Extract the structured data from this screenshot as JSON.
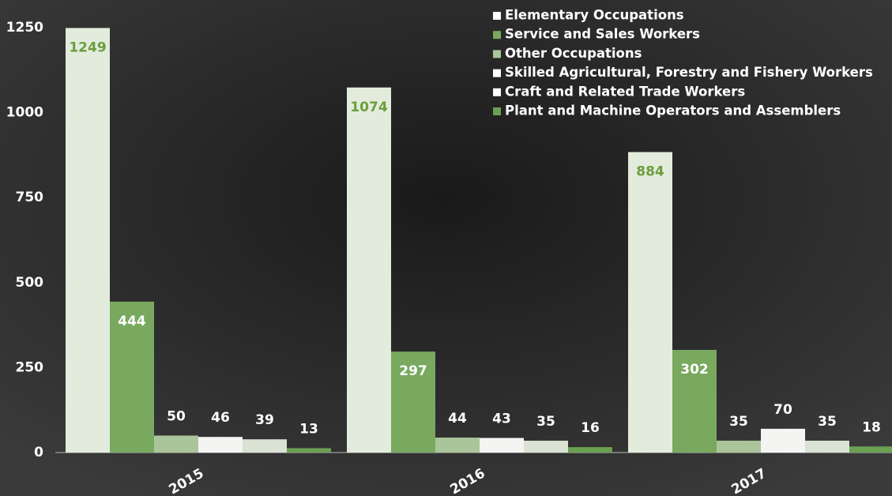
{
  "chart_data": {
    "type": "bar",
    "categories": [
      "2015",
      "2016",
      "2017"
    ],
    "series": [
      {
        "name": "Elementary Occupations",
        "color": "#e3ecdc",
        "values": [
          1249,
          1074,
          884
        ]
      },
      {
        "name": "Service and Sales Workers",
        "color": "#78a95f",
        "values": [
          444,
          297,
          302
        ]
      },
      {
        "name": "Other Occupations",
        "color": "#aac59a",
        "values": [
          50,
          44,
          35
        ]
      },
      {
        "name": "Skilled Agricultural, Forestry and Fishery Workers",
        "color": "#f4f4f2",
        "values": [
          46,
          43,
          70
        ]
      },
      {
        "name": "Craft and Related Trade Workers",
        "color": "#d9e2d3",
        "values": [
          39,
          35,
          35
        ]
      },
      {
        "name": "Plant and Machine Operators and Assemblers",
        "color": "#6b9f52",
        "values": [
          13,
          16,
          18
        ]
      }
    ],
    "ylim": [
      0,
      1250
    ],
    "yticks": [
      0,
      250,
      500,
      750,
      1000,
      1250
    ],
    "grid": false,
    "legend": "top-right"
  }
}
